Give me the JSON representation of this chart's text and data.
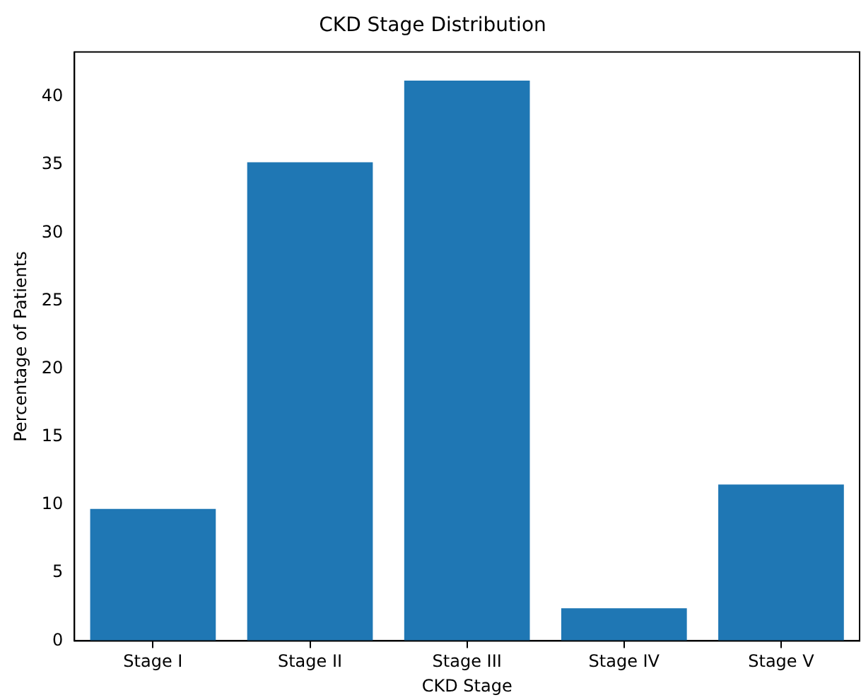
{
  "chart_data": {
    "type": "bar",
    "title": "CKD Stage Distribution",
    "xlabel": "CKD Stage",
    "ylabel": "Percentage of Patients",
    "categories": [
      "Stage I",
      "Stage II",
      "Stage III",
      "Stage IV",
      "Stage V"
    ],
    "values": [
      9.7,
      35.2,
      41.2,
      2.4,
      11.5
    ],
    "color": "#1f77b4",
    "ylim": [
      0,
      43.3
    ],
    "yticks": [
      0,
      5,
      10,
      15,
      20,
      25,
      30,
      35,
      40
    ],
    "grid": false,
    "legend": false
  }
}
